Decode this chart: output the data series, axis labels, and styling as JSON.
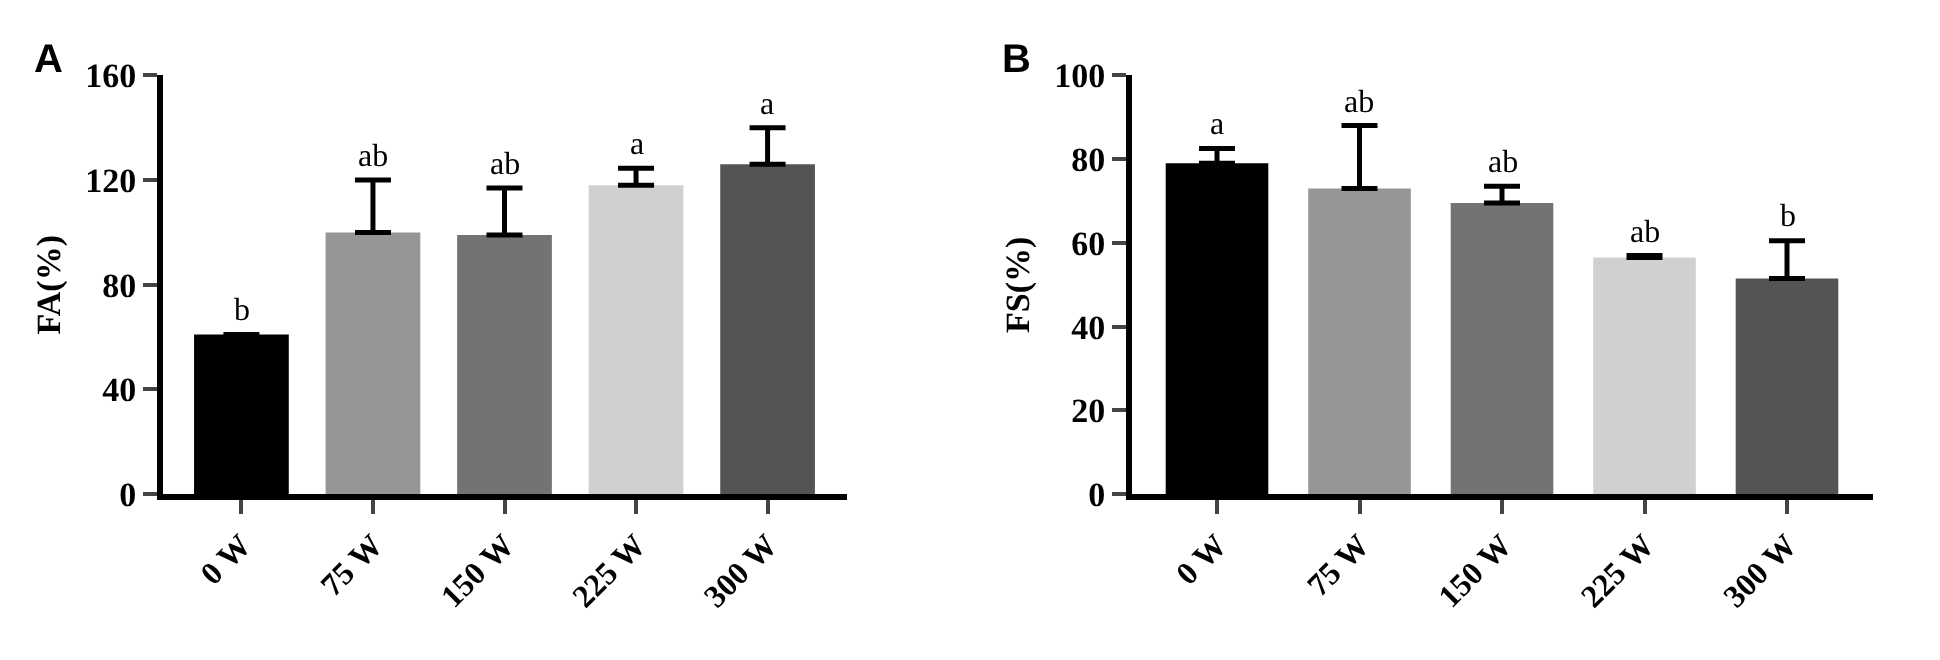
{
  "chart_data": [
    {
      "type": "bar",
      "title": "A",
      "ylabel": "FA(%)",
      "categories": [
        "0 W",
        "75 W",
        "150 W",
        "225 W",
        "300 W"
      ],
      "values": [
        61,
        100,
        99,
        118,
        126
      ],
      "colors": [
        "#000000",
        "#969696",
        "#737373",
        "#d0d0d0",
        "#545454"
      ],
      "errors": [
        [
          61,
          61
        ],
        [
          100,
          120
        ],
        [
          99,
          117
        ],
        [
          118,
          124.5
        ],
        [
          126,
          140
        ]
      ],
      "ylim": [
        0,
        160
      ],
      "yticks": [
        0,
        40,
        80,
        120,
        160
      ],
      "annotations": [
        "b",
        "ab",
        "ab",
        "a",
        "a"
      ]
    },
    {
      "type": "bar",
      "title": "B",
      "ylabel": "FS(%)",
      "categories": [
        "0 W",
        "75 W",
        "150 W",
        "225 W",
        "300 W"
      ],
      "values": [
        79,
        73,
        69.5,
        56.5,
        51.5
      ],
      "colors": [
        "#000000",
        "#969696",
        "#737373",
        "#d0d0d0",
        "#545454"
      ],
      "errors": [
        [
          79,
          82.5
        ],
        [
          73,
          88
        ],
        [
          69.5,
          73.5
        ],
        [
          56.5,
          57
        ],
        [
          51.5,
          60.5
        ]
      ],
      "ylim": [
        0,
        100
      ],
      "yticks": [
        0,
        20,
        40,
        60,
        80,
        100
      ],
      "annotations": [
        "a",
        "ab",
        "ab",
        "ab",
        "b"
      ]
    }
  ]
}
